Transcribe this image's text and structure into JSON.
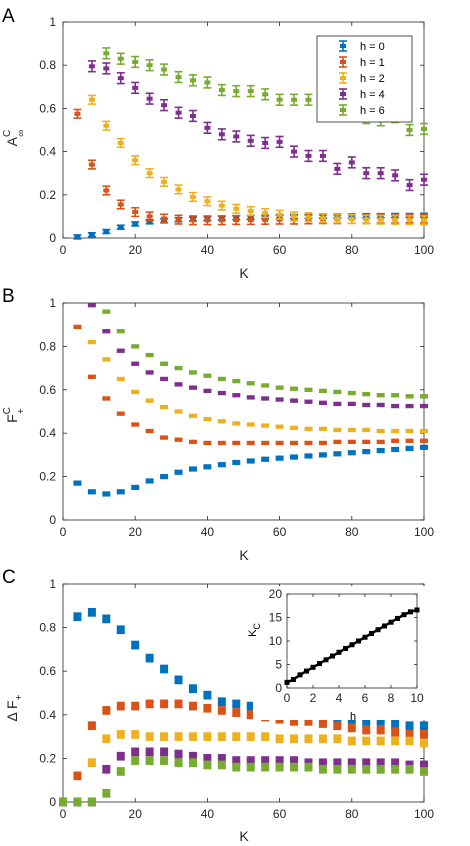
{
  "colors": {
    "h0": "#0072bd",
    "h1": "#d95319",
    "h2": "#edb120",
    "h4": "#7e2f8e",
    "h6": "#77ac30",
    "inset": "#000000"
  },
  "chart_data": [
    {
      "id": "A",
      "type": "scatter",
      "panel_label": "A",
      "xlabel": "K",
      "ylabel_main": "A",
      "ylabel_sup": "C",
      "ylabel_sub": "∞",
      "xlim": [
        0,
        100
      ],
      "ylim": [
        0,
        1
      ],
      "xticks": [
        "0",
        "20",
        "40",
        "60",
        "80",
        "100"
      ],
      "yticks": [
        "0",
        "0.2",
        "0.4",
        "0.6",
        "0.8",
        "1"
      ],
      "legend": {
        "position": "top-right",
        "entries": [
          "h = 0",
          "h = 1",
          "h = 2",
          "h = 4",
          "h = 6"
        ]
      },
      "x": [
        4,
        8,
        12,
        16,
        20,
        24,
        28,
        32,
        36,
        40,
        44,
        48,
        52,
        56,
        60,
        64,
        68,
        72,
        76,
        80,
        84,
        88,
        92,
        96,
        100
      ],
      "series": [
        {
          "name": "h = 0",
          "color": "h0",
          "err": 0.008,
          "values": [
            0.005,
            0.015,
            0.03,
            0.05,
            0.065,
            0.075,
            0.08,
            0.085,
            0.088,
            0.09,
            0.092,
            0.094,
            0.096,
            0.097,
            0.098,
            0.099,
            0.1,
            0.101,
            0.102,
            0.102,
            0.103,
            0.103,
            0.104,
            0.104,
            0.105
          ]
        },
        {
          "name": "h = 1",
          "color": "h1",
          "err": 0.02,
          "values": [
            0.575,
            0.34,
            0.22,
            0.155,
            0.12,
            0.1,
            0.09,
            0.085,
            0.082,
            0.082,
            0.082,
            0.083,
            0.083,
            0.084,
            0.085,
            0.085,
            0.086,
            0.087,
            0.087,
            0.088,
            0.088,
            0.089,
            0.089,
            0.09,
            0.09
          ]
        },
        {
          "name": "h = 2",
          "color": "h2",
          "err": 0.02,
          "values": [
            null,
            0.64,
            0.52,
            0.44,
            0.36,
            0.3,
            0.26,
            0.225,
            0.19,
            0.17,
            0.15,
            0.135,
            0.125,
            0.115,
            0.108,
            0.1,
            0.096,
            0.092,
            0.09,
            0.088,
            0.086,
            0.085,
            0.084,
            0.083,
            0.082
          ]
        },
        {
          "name": "h = 4",
          "color": "h4",
          "err": 0.025,
          "values": [
            null,
            0.795,
            0.785,
            0.74,
            0.695,
            0.645,
            0.615,
            0.58,
            0.565,
            0.51,
            0.48,
            0.47,
            0.45,
            0.44,
            0.445,
            0.4,
            0.38,
            0.38,
            0.32,
            0.35,
            0.3,
            0.3,
            0.29,
            0.245,
            0.27
          ]
        },
        {
          "name": "h = 6",
          "color": "h6",
          "err": 0.025,
          "values": [
            null,
            null,
            0.855,
            0.83,
            0.815,
            0.8,
            0.78,
            0.745,
            0.73,
            0.72,
            0.685,
            0.68,
            0.68,
            0.665,
            0.64,
            0.64,
            0.64,
            0.6,
            0.6,
            0.59,
            0.555,
            0.545,
            0.56,
            0.5,
            0.505
          ]
        }
      ]
    },
    {
      "id": "B",
      "type": "scatter",
      "panel_label": "B",
      "xlabel": "K",
      "ylabel_main": "F",
      "ylabel_sup": "C",
      "ylabel_sub": "+",
      "xlim": [
        0,
        100
      ],
      "ylim": [
        0,
        1
      ],
      "xticks": [
        "0",
        "20",
        "40",
        "60",
        "80",
        "100"
      ],
      "yticks": [
        "0",
        "0.2",
        "0.4",
        "0.6",
        "0.8",
        "1"
      ],
      "x": [
        4,
        8,
        12,
        16,
        20,
        24,
        28,
        32,
        36,
        40,
        44,
        48,
        52,
        56,
        60,
        64,
        68,
        72,
        76,
        80,
        84,
        88,
        92,
        96,
        100
      ],
      "series": [
        {
          "name": "h = 0",
          "color": "h0",
          "err": 0.012,
          "values": [
            0.17,
            0.13,
            0.12,
            0.13,
            0.15,
            0.18,
            0.2,
            0.22,
            0.235,
            0.245,
            0.255,
            0.265,
            0.272,
            0.28,
            0.285,
            0.29,
            0.295,
            0.3,
            0.305,
            0.31,
            0.315,
            0.32,
            0.325,
            0.33,
            0.335
          ]
        },
        {
          "name": "h = 1",
          "color": "h1",
          "err": 0.01,
          "values": [
            0.89,
            0.66,
            0.56,
            0.49,
            0.44,
            0.41,
            0.38,
            0.37,
            0.36,
            0.355,
            0.355,
            0.355,
            0.355,
            0.355,
            0.355,
            0.355,
            0.355,
            0.355,
            0.36,
            0.36,
            0.36,
            0.36,
            0.365,
            0.365,
            0.365
          ]
        },
        {
          "name": "h = 2",
          "color": "h2",
          "err": 0.01,
          "values": [
            null,
            0.82,
            0.74,
            0.65,
            0.59,
            0.55,
            0.52,
            0.5,
            0.48,
            0.465,
            0.455,
            0.445,
            0.44,
            0.435,
            0.43,
            0.425,
            0.42,
            0.42,
            0.415,
            0.415,
            0.415,
            0.41,
            0.41,
            0.41,
            0.41
          ]
        },
        {
          "name": "h = 4",
          "color": "h4",
          "err": 0.01,
          "values": [
            null,
            0.99,
            0.87,
            0.78,
            0.72,
            0.68,
            0.65,
            0.625,
            0.61,
            0.595,
            0.585,
            0.575,
            0.565,
            0.56,
            0.555,
            0.55,
            0.545,
            0.54,
            0.535,
            0.535,
            0.53,
            0.53,
            0.525,
            0.525,
            0.525
          ]
        },
        {
          "name": "h = 6",
          "color": "h6",
          "err": 0.01,
          "values": [
            null,
            null,
            0.96,
            0.87,
            0.8,
            0.76,
            0.72,
            0.7,
            0.68,
            0.665,
            0.65,
            0.64,
            0.63,
            0.62,
            0.61,
            0.605,
            0.6,
            0.595,
            0.59,
            0.585,
            0.58,
            0.575,
            0.575,
            0.57,
            0.57
          ]
        }
      ]
    },
    {
      "id": "C",
      "type": "scatter",
      "panel_label": "C",
      "xlabel": "K",
      "ylabel_main": "Δ F",
      "ylabel_sup": "",
      "ylabel_sub": "+",
      "xlim": [
        0,
        100
      ],
      "ylim": [
        0,
        1
      ],
      "xticks": [
        "0",
        "20",
        "40",
        "60",
        "80",
        "100"
      ],
      "yticks": [
        "0",
        "0.2",
        "0.4",
        "0.6",
        "0.8",
        "1"
      ],
      "x": [
        0,
        4,
        8,
        12,
        16,
        20,
        24,
        28,
        32,
        36,
        40,
        44,
        48,
        52,
        56,
        60,
        64,
        68,
        72,
        76,
        80,
        84,
        88,
        92,
        96,
        100
      ],
      "series": [
        {
          "name": "h = 0",
          "color": "h0",
          "err": 0.02,
          "values": [
            null,
            0.85,
            0.87,
            0.84,
            0.79,
            0.72,
            0.66,
            0.61,
            0.56,
            0.52,
            0.49,
            0.46,
            0.45,
            0.44,
            0.43,
            0.42,
            0.4,
            0.39,
            0.39,
            0.38,
            0.38,
            0.37,
            0.37,
            0.36,
            0.35,
            0.35
          ]
        },
        {
          "name": "h = 1",
          "color": "h1",
          "err": 0.02,
          "values": [
            0.0,
            0.12,
            0.35,
            0.42,
            0.44,
            0.44,
            0.45,
            0.45,
            0.45,
            0.44,
            0.43,
            0.42,
            0.41,
            0.4,
            0.39,
            0.38,
            0.37,
            0.37,
            0.36,
            0.35,
            0.34,
            0.33,
            0.33,
            0.32,
            0.31,
            0.31
          ]
        },
        {
          "name": "h = 2",
          "color": "h2",
          "err": 0.02,
          "values": [
            0.0,
            0.0,
            0.18,
            0.29,
            0.31,
            0.31,
            0.3,
            0.3,
            0.3,
            0.3,
            0.3,
            0.3,
            0.3,
            0.3,
            0.3,
            0.29,
            0.29,
            0.29,
            0.29,
            0.29,
            0.28,
            0.28,
            0.28,
            0.28,
            0.28,
            0.27
          ]
        },
        {
          "name": "h = 4",
          "color": "h4",
          "err": 0.02,
          "values": [
            0.0,
            0.0,
            0.0,
            0.15,
            0.21,
            0.23,
            0.23,
            0.23,
            0.22,
            0.21,
            0.2,
            0.2,
            0.19,
            0.19,
            0.19,
            0.19,
            0.19,
            0.18,
            0.18,
            0.18,
            0.18,
            0.18,
            0.18,
            0.18,
            0.17,
            0.17
          ]
        },
        {
          "name": "h = 6",
          "color": "h6",
          "err": 0.02,
          "values": [
            0.0,
            0.0,
            0.0,
            0.04,
            0.14,
            0.19,
            0.19,
            0.19,
            0.18,
            0.18,
            0.17,
            0.17,
            0.16,
            0.16,
            0.16,
            0.16,
            0.16,
            0.16,
            0.15,
            0.15,
            0.15,
            0.15,
            0.15,
            0.15,
            0.15,
            0.14
          ]
        }
      ]
    },
    {
      "id": "inset",
      "type": "line",
      "xlabel": "h",
      "ylabel_main": "K",
      "ylabel_sub": "C",
      "xlim": [
        0,
        10
      ],
      "ylim": [
        0,
        20
      ],
      "xticks": [
        "0",
        "2",
        "4",
        "6",
        "8",
        "10"
      ],
      "yticks": [
        "0",
        "5",
        "10",
        "15",
        "20"
      ],
      "x": [
        0,
        0.5,
        1,
        1.5,
        2,
        2.5,
        3,
        3.5,
        4,
        4.5,
        5,
        5.5,
        6,
        6.5,
        7,
        7.5,
        8,
        8.5,
        9,
        9.5,
        10
      ],
      "series": [
        {
          "color": "inset",
          "values": [
            1.2,
            1.8,
            2.8,
            3.6,
            4.4,
            5.2,
            6.0,
            6.8,
            7.6,
            8.4,
            9.2,
            10.0,
            10.8,
            11.6,
            12.4,
            13.2,
            14.0,
            14.8,
            15.6,
            16.2,
            16.6
          ]
        }
      ]
    }
  ]
}
